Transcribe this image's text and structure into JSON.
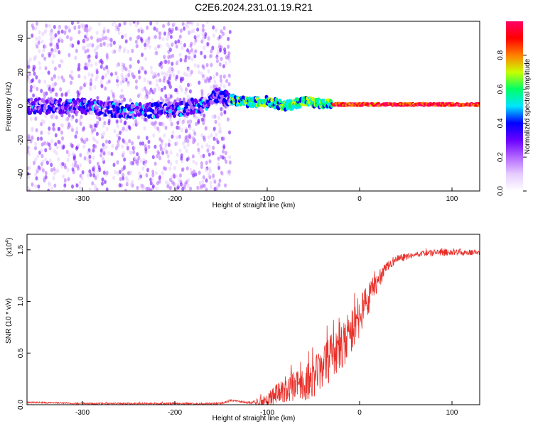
{
  "title": "C2E6.2024.231.01.19.R21",
  "chart_data": [
    {
      "type": "heatmap",
      "xlabel": "Height of straight line (km)",
      "ylabel": "Frequency (Hz)",
      "xlim": [
        -360,
        130
      ],
      "ylim": [
        -50,
        50
      ],
      "xticks": [
        -300,
        -200,
        -100,
        0,
        100
      ],
      "yticks": [
        -40,
        -20,
        0,
        20,
        40
      ],
      "colorbar": {
        "label": "Normalized spectral amplitude",
        "range": [
          0.0,
          1.0
        ],
        "ticks": [
          "0.0",
          "0.2",
          "0.4",
          "0.6",
          "0.8"
        ],
        "colormap": [
          "#ffffff",
          "#e6ccff",
          "#b366ff",
          "#6a00ff",
          "#0000ff",
          "#00e5ff",
          "#00ff66",
          "#c8ff00",
          "#ff8000",
          "#ff0000",
          "#ff0066"
        ]
      },
      "signal_center_hz": [
        [
          -355,
          0
        ],
        [
          -300,
          0
        ],
        [
          -250,
          -3
        ],
        [
          -200,
          -2
        ],
        [
          -170,
          1
        ],
        [
          -155,
          6
        ],
        [
          -140,
          4
        ],
        [
          -120,
          2
        ],
        [
          -100,
          3
        ],
        [
          -80,
          0
        ],
        [
          -60,
          3
        ],
        [
          -40,
          1
        ],
        [
          -20,
          1
        ],
        [
          0,
          1
        ],
        [
          50,
          1
        ],
        [
          130,
          1
        ]
      ],
      "features": [
        {
          "x": [
            -360,
            -140
          ],
          "desc_level": 0.3
        },
        {
          "x": [
            -140,
            -40
          ],
          "desc_level": 0.55
        },
        {
          "x": [
            -30,
            130
          ],
          "desc_level": 0.9
        }
      ]
    },
    {
      "type": "line",
      "xlabel": "Height of straight line (km)",
      "ylabel": "SNR (10 * v/v)",
      "multiplier": "(x10",
      "multiplier_exp": "4",
      "multiplier_close": ")",
      "xlim": [
        -360,
        130
      ],
      "ylim": [
        0,
        1.65
      ],
      "xticks": [
        -300,
        -200,
        -100,
        0,
        100
      ],
      "yticks": [
        "0.0",
        "0.5",
        "1.0",
        "1.5"
      ],
      "series": [
        {
          "color": "#e8302a",
          "envelope": [
            [
              -360,
              0.03
            ],
            [
              -300,
              0.02
            ],
            [
              -250,
              0.02
            ],
            [
              -200,
              0.02
            ],
            [
              -150,
              0.02
            ],
            [
              -140,
              0.05
            ],
            [
              -120,
              0.03
            ],
            [
              -110,
              0.06
            ],
            [
              -100,
              0.12
            ],
            [
              -90,
              0.2
            ],
            [
              -80,
              0.28
            ],
            [
              -70,
              0.33
            ],
            [
              -60,
              0.38
            ],
            [
              -50,
              0.45
            ],
            [
              -40,
              0.55
            ],
            [
              -30,
              0.7
            ],
            [
              -20,
              0.82
            ],
            [
              -10,
              0.95
            ],
            [
              0,
              1.05
            ],
            [
              10,
              1.18
            ],
            [
              20,
              1.3
            ],
            [
              30,
              1.4
            ],
            [
              40,
              1.45
            ],
            [
              60,
              1.48
            ],
            [
              80,
              1.5
            ],
            [
              100,
              1.52
            ],
            [
              120,
              1.5
            ],
            [
              130,
              1.49
            ]
          ],
          "noise_amplitude": [
            [
              -360,
              0.015
            ],
            [
              -120,
              0.02
            ],
            [
              -100,
              0.15
            ],
            [
              -60,
              0.35
            ],
            [
              -30,
              0.45
            ],
            [
              -10,
              0.5
            ],
            [
              10,
              0.3
            ],
            [
              30,
              0.1
            ],
            [
              60,
              0.05
            ],
            [
              100,
              0.08
            ],
            [
              130,
              0.04
            ]
          ]
        }
      ]
    }
  ]
}
